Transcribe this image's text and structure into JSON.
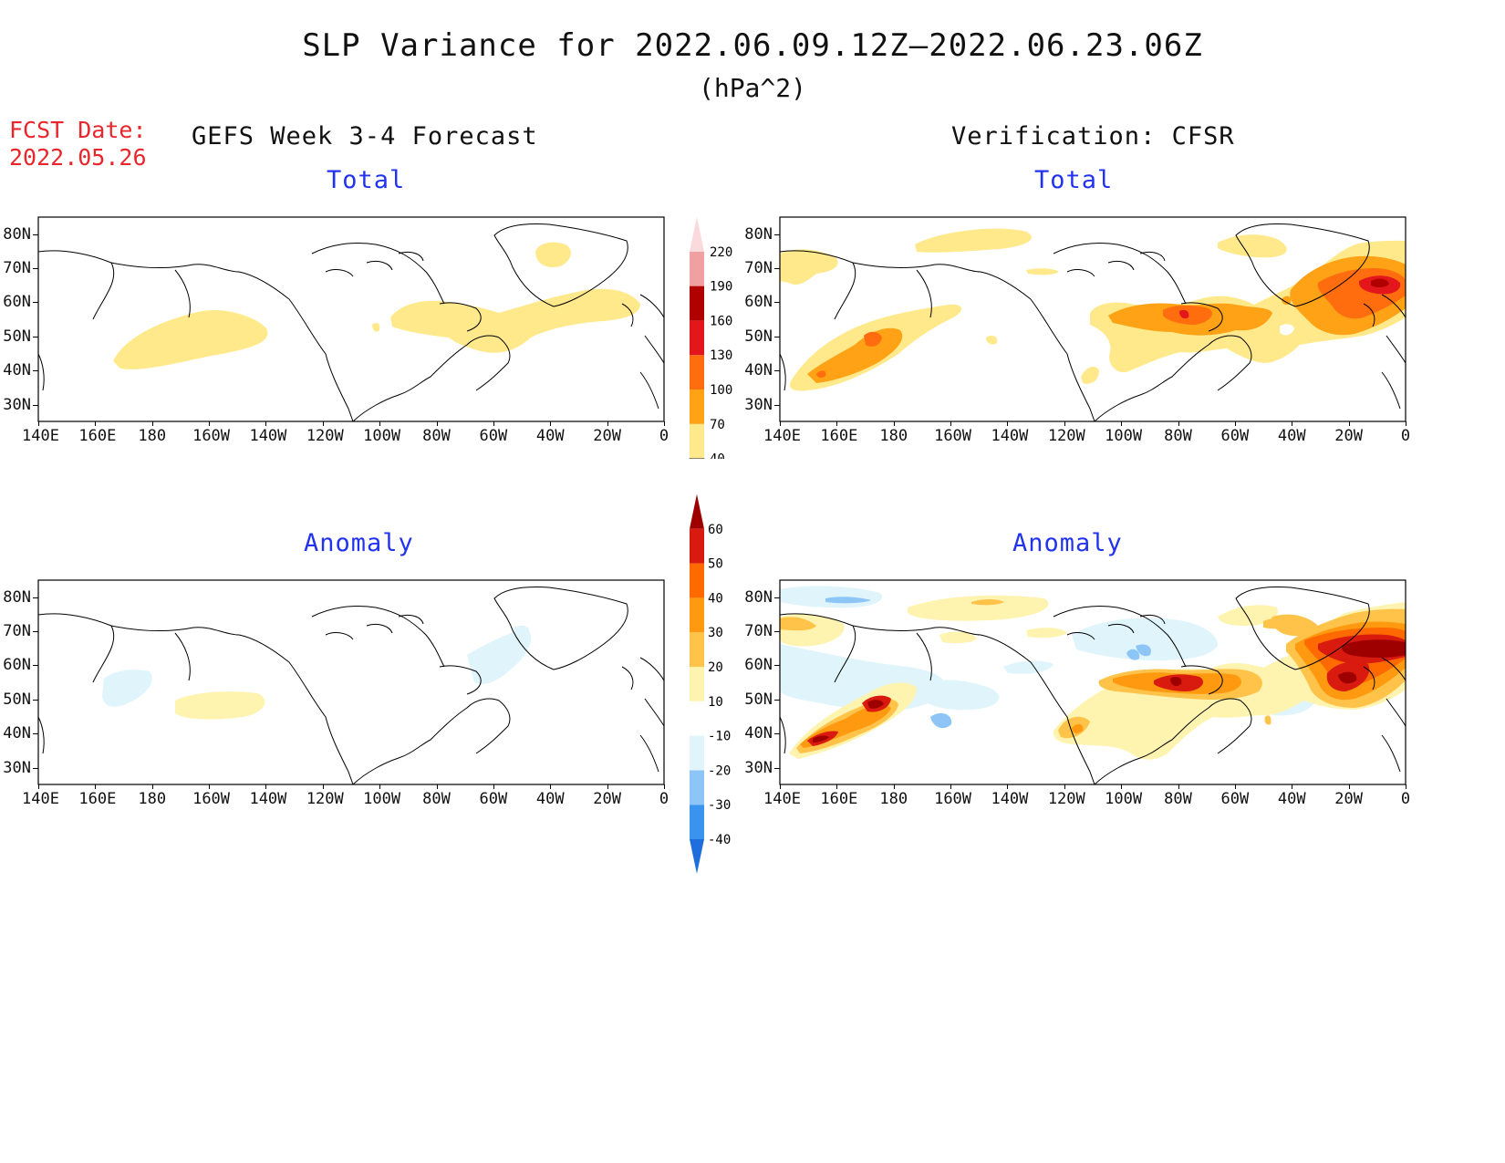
{
  "title": "SLP Variance for 2022.06.09.12Z—2022.06.23.06Z",
  "units": "(hPa^2)",
  "fcst_date_label": "FCST Date:",
  "fcst_date_value": "2022.05.26",
  "left_heading": "GEFS Week 3-4 Forecast",
  "right_heading": "Verification: CFSR",
  "panels": {
    "forecast_total": {
      "subtitle": "Total"
    },
    "verif_total": {
      "subtitle": "Total"
    },
    "forecast_anomaly": {
      "subtitle": "Anomaly"
    },
    "verif_anomaly": {
      "subtitle": "Anomaly"
    }
  },
  "lon_ticks": [
    "140E",
    "160E",
    "180",
    "160W",
    "140W",
    "120W",
    "100W",
    "80W",
    "60W",
    "40W",
    "20W",
    "0"
  ],
  "lat_ticks": [
    "80N",
    "70N",
    "60N",
    "50N",
    "40N",
    "30N"
  ],
  "total_colorbar": {
    "levels": [
      "40",
      "70",
      "100",
      "130",
      "160",
      "190",
      "220"
    ],
    "colors": [
      "#ffe98a",
      "#ffa216",
      "#ff6d0f",
      "#e3161c",
      "#b00000",
      "#f0a0a0",
      "#fadadd"
    ]
  },
  "anomaly_colorbar": {
    "levels": [
      "-40",
      "-30",
      "-20",
      "-10",
      "10",
      "20",
      "30",
      "40",
      "50",
      "60"
    ],
    "colors": [
      "#1e6fdd",
      "#3a94ef",
      "#8dc6f6",
      "#dff4fb",
      "#ffffff",
      "#fff3b0",
      "#ffc34a",
      "#ff9a10",
      "#ff6a00",
      "#d91a0e",
      "#9e0000"
    ]
  },
  "map_style": {
    "land_outline": "#000000",
    "background": "#ffffff"
  }
}
